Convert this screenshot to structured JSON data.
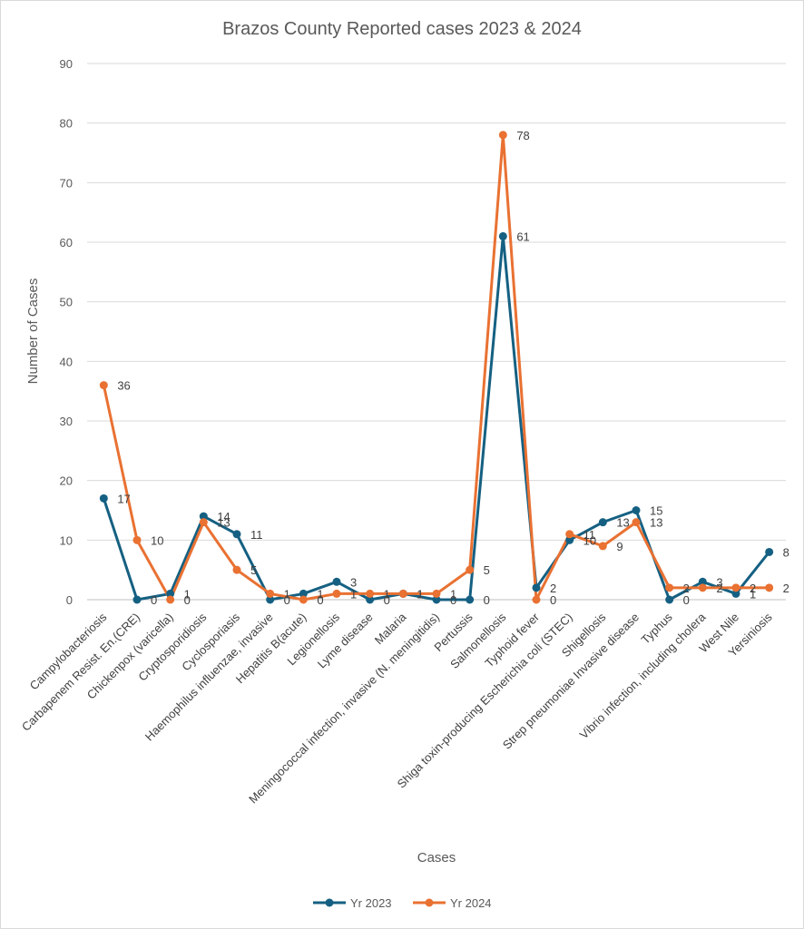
{
  "chart_data": {
    "type": "line",
    "title": "Brazos County Reported cases 2023 & 2024",
    "xlabel": "Cases",
    "ylabel": "Number of Cases",
    "ylim": [
      0,
      90
    ],
    "yticks": [
      0,
      10,
      20,
      30,
      40,
      50,
      60,
      70,
      80,
      90
    ],
    "grid": true,
    "legend_position": "bottom",
    "categories": [
      "Campylobacteriosis",
      "Carbapenem Resist. En.(CRE)",
      "Chickenpox (varicella)",
      "Cryptosporidiosis",
      "Cyclosporiasis",
      "Haemophilus influenzae, invasive",
      "Hepatitis B(acute)",
      "Legionellosis",
      "Lyme disease",
      "Malaria",
      "Meningococcal infection, invasive (N. meningitidis)",
      "Pertussis",
      "Salmonellosis",
      "Typhoid fever",
      "Shiga toxin-producing Escherichia coli (STEC)",
      "Shigellosis",
      "Strep pneumoniae Invasive disease",
      "Typhus",
      "Vibrio infection, including cholera",
      "West Nile",
      "Yersiniosis"
    ],
    "series": [
      {
        "name": "Yr 2023",
        "color": "#156082",
        "values": [
          17,
          0,
          1,
          14,
          11,
          0,
          1,
          3,
          0,
          1,
          0,
          0,
          61,
          2,
          10,
          13,
          15,
          0,
          3,
          1,
          8
        ]
      },
      {
        "name": "Yr 2024",
        "color": "#E97132",
        "values": [
          36,
          10,
          0,
          13,
          5,
          1,
          0,
          1,
          1,
          1,
          1,
          5,
          78,
          0,
          11,
          9,
          13,
          2,
          2,
          2,
          2
        ]
      }
    ]
  }
}
